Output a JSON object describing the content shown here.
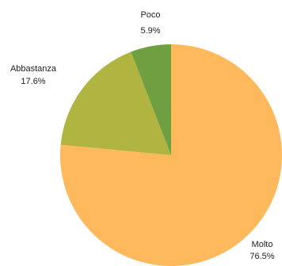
{
  "chart_data": {
    "type": "pie",
    "categories": [
      "Molto",
      "Abbastanza",
      "Poco"
    ],
    "values": [
      76.5,
      17.6,
      5.9
    ],
    "labels": [
      "76.5%",
      "17.6%",
      "5.9%"
    ],
    "colors": [
      "#fdb95b",
      "#b0b440",
      "#6f9f41"
    ],
    "legend": "none"
  }
}
